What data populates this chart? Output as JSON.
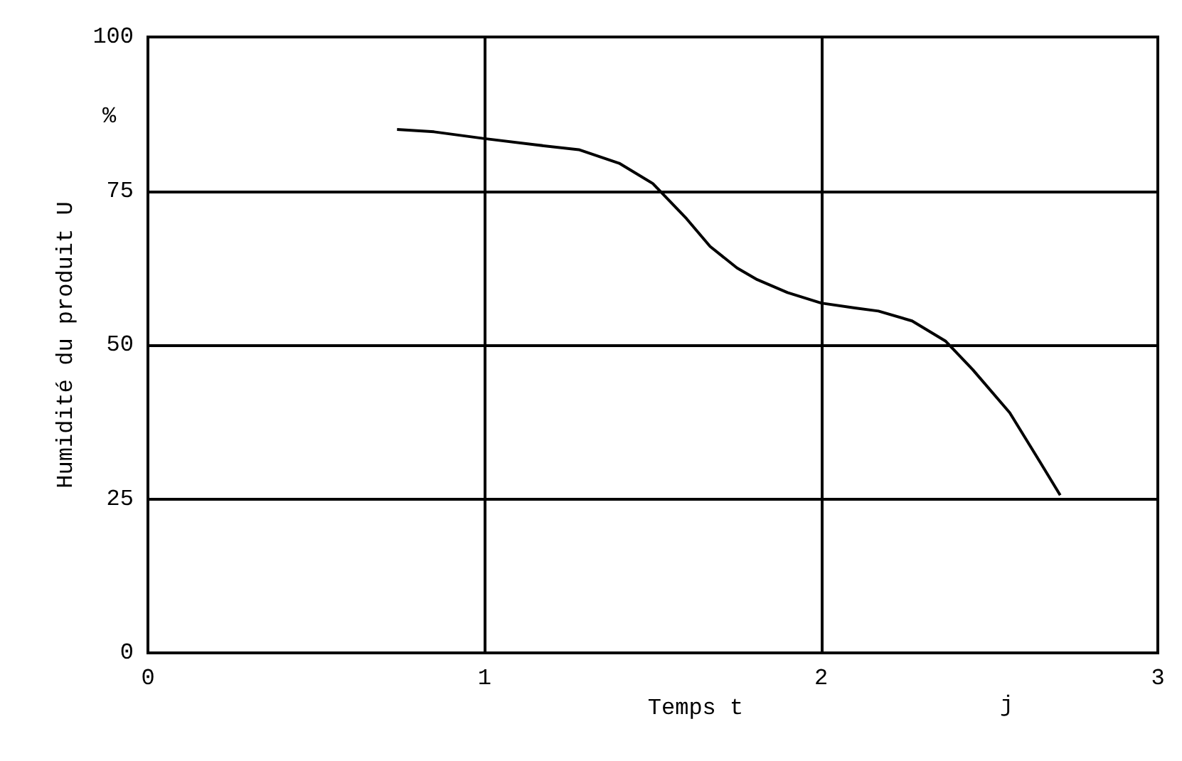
{
  "chart_data": {
    "type": "line",
    "xlabel": "Temps t",
    "ylabel": "Humidité du produit U",
    "annotations": [
      "%",
      "j"
    ],
    "x": [
      0.74,
      0.85,
      1.0,
      1.15,
      1.28,
      1.4,
      1.5,
      1.6,
      1.67,
      1.75,
      1.81,
      1.9,
      2.0,
      2.1,
      2.17,
      2.27,
      2.37,
      2.45,
      2.56,
      2.65,
      2.71
    ],
    "series": [
      {
        "color": "#000000",
        "values": [
          85,
          84.6,
          83.5,
          82.5,
          81.7,
          79.5,
          76.2,
          70.5,
          66,
          62.5,
          60.6,
          58.5,
          56.8,
          56,
          55.5,
          53.9,
          50.6,
          46,
          39,
          31,
          25.6
        ]
      }
    ],
    "xlim": [
      0,
      3
    ],
    "xticks": [
      0,
      1,
      2,
      3
    ],
    "ylim": [
      0,
      100
    ],
    "yticks": [
      0,
      25,
      50,
      75,
      100
    ],
    "grid": true,
    "marker": "none",
    "line_style": "solid"
  }
}
